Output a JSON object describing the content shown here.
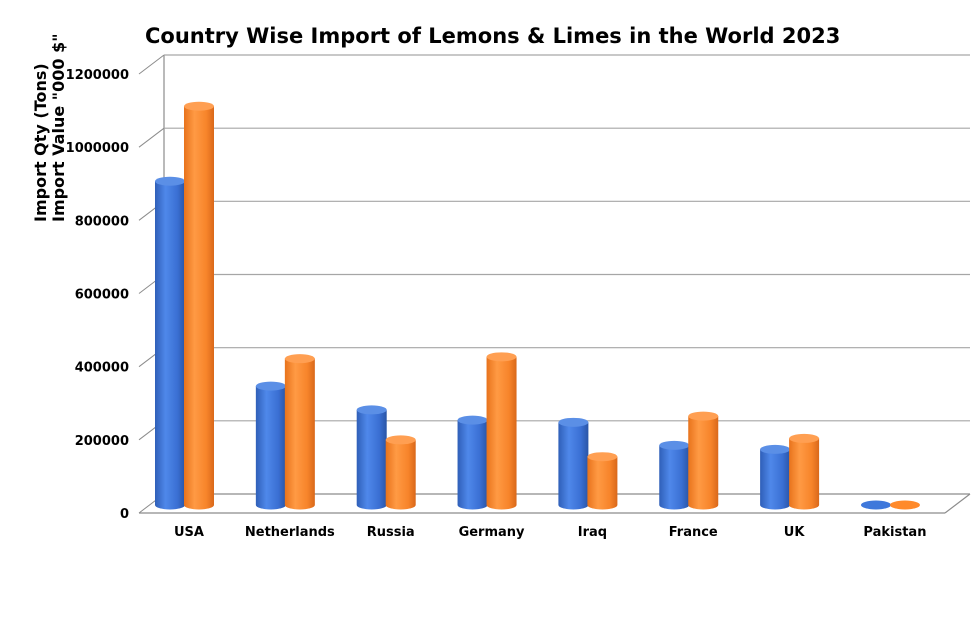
{
  "chart_data": {
    "type": "bar",
    "title": "Country Wise Import of Lemons & Limes in the World 2023",
    "ylabel_lines": [
      "Import Qty (Tons)",
      "Import Value \"000 $\""
    ],
    "xlabel": "",
    "ylim": [
      0,
      1200000
    ],
    "yticks": [
      0,
      200000,
      400000,
      600000,
      800000,
      1000000,
      1200000
    ],
    "ytick_labels": [
      "0",
      "200000",
      "400000",
      "600000",
      "800000",
      "1000000",
      "1200000"
    ],
    "grid": true,
    "legend": "none",
    "categories": [
      "USA",
      "Netherlands",
      "Russia",
      "Germany",
      "Iraq",
      "France",
      "UK",
      "Pakistan"
    ],
    "series": [
      {
        "color": "#3f78db",
        "values": [
          885000,
          325000,
          260000,
          232000,
          226000,
          163000,
          152000,
          3000
        ]
      },
      {
        "color": "#ff8a2b",
        "values": [
          1090000,
          400000,
          178000,
          405000,
          132000,
          243000,
          182000,
          3000
        ]
      }
    ]
  }
}
